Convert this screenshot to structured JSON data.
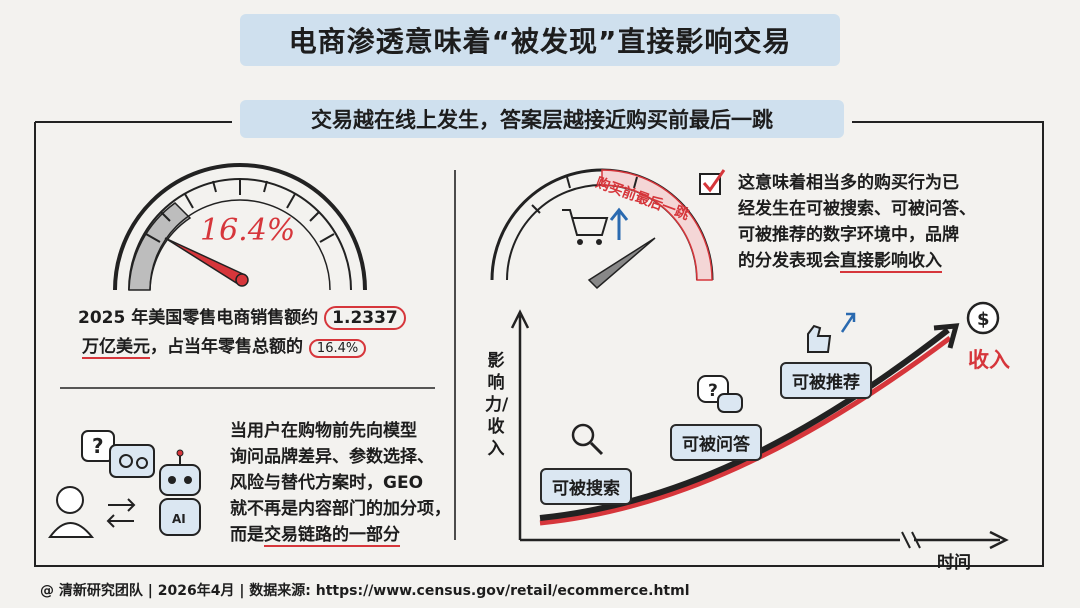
{
  "title": "电商渗透意味着“被发现”直接影响交易",
  "subtitle": "交易越在线上发生，答案层越接近购买前最后一跳",
  "gauge_left": {
    "value_label": "16.4%",
    "value_fraction": 0.164,
    "caption_line1_prefix": "2025 年美国零售电商销售额约",
    "caption_highlight_amount": "1.2337",
    "caption_line2_prefix": "万亿美元",
    "caption_line2_mid": "，占当年零售总额的",
    "caption_highlight_pct": "16.4%"
  },
  "gauge_right": {
    "arc_label": "购买前最后一跳"
  },
  "statement": {
    "line1": "这意味着相当多的购买行为已",
    "line2": "经发生在可被搜索、可被问答、",
    "line3": "可被推荐的数字环境中，品牌",
    "line4_prefix": "的分发表现会",
    "line4_emph": "直接影响收入"
  },
  "ai_section": {
    "line1": "当用户在购物前先向模型",
    "line2": "询问品牌差异、参数选择、",
    "line3": "风险与替代方案时，GEO",
    "line4": "就不再是内容部门的加分项，",
    "line5_prefix": "而是",
    "line5_emph": "交易链路的一部分",
    "robot_label": "AI"
  },
  "growth_chart": {
    "y_label": "影响力/收入",
    "x_label": "时间",
    "stages": [
      "可被搜索",
      "可被问答",
      "可被推荐"
    ],
    "end_label": "收入",
    "end_icon": "dollar-icon"
  },
  "footer": "@ 清新研究团队 | 2026年4月 | 数据来源: https://www.census.gov/retail/ecommerce.html",
  "colors": {
    "accent_red": "#d6363b",
    "highlight_blue": "#cfe0ee",
    "ink": "#1d1d1d"
  }
}
